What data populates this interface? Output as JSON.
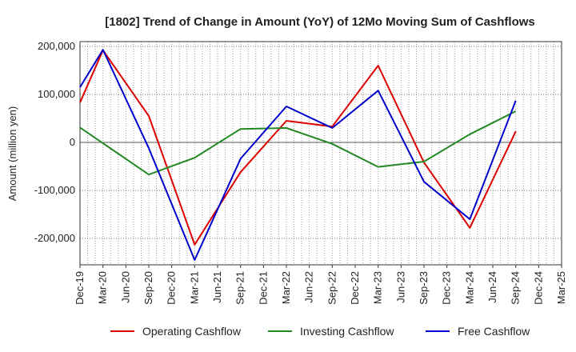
{
  "chart_data": {
    "type": "line",
    "title": "[1802]  Trend of Change in Amount (YoY) of 12Mo Moving Sum of Cashflows",
    "xlabel": "",
    "ylabel": "Amount (million yen)",
    "ylim": [
      -255000,
      210000
    ],
    "yticks": [
      200000,
      100000,
      0,
      -100000,
      -200000
    ],
    "ytick_labels": [
      "200,000",
      "100,000",
      "0",
      "-100,000",
      "-200,000"
    ],
    "categories": [
      "Dec-19",
      "Mar-20",
      "Jun-20",
      "Sep-20",
      "Dec-20",
      "Mar-21",
      "Jun-21",
      "Sep-21",
      "Dec-21",
      "Mar-22",
      "Jun-22",
      "Sep-22",
      "Dec-22",
      "Mar-23",
      "Jun-23",
      "Sep-23",
      "Dec-23",
      "Mar-24",
      "Jun-24",
      "Sep-24",
      "Dec-24",
      "Mar-25"
    ],
    "grid": true,
    "legend_position": "bottom",
    "series": [
      {
        "name": "Operating Cashflow",
        "color": "#dd0000",
        "points": [
          {
            "x": "Dec-19",
            "y": 83000
          },
          {
            "x": "Mar-20",
            "y": 192000
          },
          {
            "x": "Sep-20",
            "y": 55000
          },
          {
            "x": "Mar-21",
            "y": -213000
          },
          {
            "x": "Sep-21",
            "y": -62000
          },
          {
            "x": "Mar-22",
            "y": 45000
          },
          {
            "x": "Sep-22",
            "y": 33000
          },
          {
            "x": "Mar-23",
            "y": 160000
          },
          {
            "x": "Sep-23",
            "y": -42000
          },
          {
            "x": "Mar-24",
            "y": -178000
          },
          {
            "x": "Sep-24",
            "y": 23000
          }
        ]
      },
      {
        "name": "Investing Cashflow",
        "color": "#228822",
        "points": [
          {
            "x": "Dec-19",
            "y": 31000
          },
          {
            "x": "Sep-20",
            "y": -67000
          },
          {
            "x": "Mar-21",
            "y": -32000
          },
          {
            "x": "Sep-21",
            "y": 28000
          },
          {
            "x": "Mar-22",
            "y": 30000
          },
          {
            "x": "Sep-22",
            "y": -3000
          },
          {
            "x": "Mar-23",
            "y": -51000
          },
          {
            "x": "Sep-23",
            "y": -40000
          },
          {
            "x": "Mar-24",
            "y": 17000
          },
          {
            "x": "Sep-24",
            "y": 65000
          }
        ]
      },
      {
        "name": "Free Cashflow",
        "color": "#0000cc",
        "points": [
          {
            "x": "Dec-19",
            "y": 115000
          },
          {
            "x": "Mar-20",
            "y": 193000
          },
          {
            "x": "Sep-20",
            "y": -12000
          },
          {
            "x": "Mar-21",
            "y": -245000
          },
          {
            "x": "Sep-21",
            "y": -34000
          },
          {
            "x": "Mar-22",
            "y": 75000
          },
          {
            "x": "Sep-22",
            "y": 30000
          },
          {
            "x": "Mar-23",
            "y": 108000
          },
          {
            "x": "Sep-23",
            "y": -82000
          },
          {
            "x": "Mar-24",
            "y": -160000
          },
          {
            "x": "Sep-24",
            "y": 87000
          }
        ]
      }
    ]
  }
}
